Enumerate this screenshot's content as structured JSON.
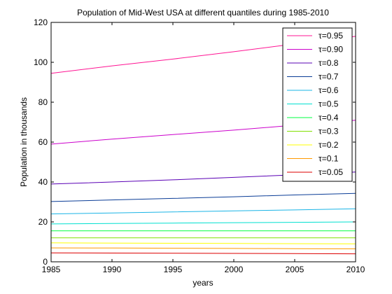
{
  "chart_data": {
    "type": "line",
    "title": "Population of Mid-West USA at different quantiles during 1985-2010",
    "xlabel": "years",
    "ylabel": "Population in thousands",
    "xlim": [
      1985,
      2010
    ],
    "ylim": [
      0,
      120
    ],
    "xticks": [
      1985,
      1990,
      1995,
      2000,
      2005,
      2010
    ],
    "yticks": [
      0,
      20,
      40,
      60,
      80,
      100,
      120
    ],
    "grid": false,
    "legend_position": "top-right",
    "x": [
      1985,
      1990,
      1995,
      2000,
      2005,
      2010
    ],
    "series": [
      {
        "name": "τ=0.95",
        "color": "#ff1493",
        "values": [
          94.5,
          98.2,
          101.6,
          105.3,
          109.2,
          113.0
        ]
      },
      {
        "name": "τ=0.90",
        "color": "#cc00cc",
        "values": [
          59.0,
          61.5,
          63.8,
          66.0,
          68.5,
          71.0
        ]
      },
      {
        "name": "τ=0.8",
        "color": "#5a00b5",
        "values": [
          39.0,
          40.0,
          41.1,
          42.3,
          43.6,
          45.0
        ]
      },
      {
        "name": "τ=0.7",
        "color": "#0a3c96",
        "values": [
          30.2,
          31.0,
          31.8,
          32.6,
          33.5,
          34.3
        ]
      },
      {
        "name": "τ=0.6",
        "color": "#1ab4e6",
        "values": [
          24.0,
          24.5,
          25.0,
          25.5,
          26.0,
          26.6
        ]
      },
      {
        "name": "τ=0.5",
        "color": "#00e0d0",
        "values": [
          19.0,
          19.2,
          19.4,
          19.6,
          19.8,
          20.0
        ]
      },
      {
        "name": "τ=0.4",
        "color": "#00ff40",
        "values": [
          15.5,
          15.5,
          15.5,
          15.5,
          15.5,
          15.5
        ]
      },
      {
        "name": "τ=0.3",
        "color": "#80e000",
        "values": [
          12.0,
          12.0,
          12.0,
          12.0,
          12.0,
          12.0
        ]
      },
      {
        "name": "τ=0.2",
        "color": "#ffff00",
        "values": [
          9.5,
          9.4,
          9.3,
          9.2,
          9.1,
          9.0
        ]
      },
      {
        "name": "τ=0.1",
        "color": "#ff9900",
        "values": [
          7.0,
          6.9,
          6.8,
          6.7,
          6.6,
          6.5
        ]
      },
      {
        "name": "τ=0.05",
        "color": "#dd0000",
        "values": [
          4.5,
          4.4,
          4.3,
          4.2,
          4.1,
          4.0
        ]
      }
    ]
  }
}
